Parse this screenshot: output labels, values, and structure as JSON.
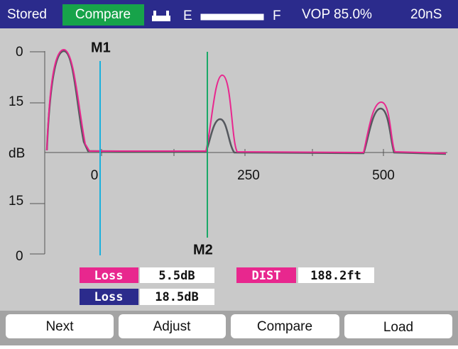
{
  "status_bar": {
    "mode": "Stored",
    "active": "Compare",
    "empty_label": "E",
    "full_label": "F",
    "vop": "VOP 85.0%",
    "range": "20nS"
  },
  "plot": {
    "y_labels": [
      "0",
      "15",
      "dB",
      "15",
      "0"
    ],
    "x_labels": [
      "0",
      "250",
      "500"
    ],
    "markers": [
      "M1",
      "M2"
    ]
  },
  "readouts": [
    {
      "label": "Loss",
      "value": "5.5dB"
    },
    {
      "label": "DIST",
      "value": "188.2ft"
    },
    {
      "label": "Loss",
      "value": "18.5dB"
    }
  ],
  "buttons": [
    "Next",
    "Adjust",
    "Compare",
    "Load"
  ]
}
